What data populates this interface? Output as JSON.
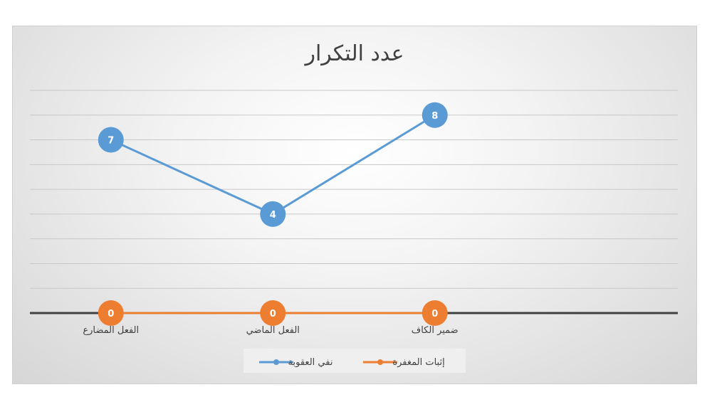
{
  "chart_data": {
    "type": "line",
    "title": "عدد التكرار",
    "categories": [
      "الفعل المضارع",
      "الفعل الماضي",
      "ضمير الكاف",
      ""
    ],
    "series": [
      {
        "name": "نفي العقوبة",
        "values": [
          7,
          4,
          8,
          null
        ],
        "color": "#5b9bd5"
      },
      {
        "name": "إثبات المغفرة",
        "values": [
          0,
          0,
          0,
          null
        ],
        "color": "#ed7d31"
      }
    ],
    "ylim": [
      0,
      9
    ],
    "grid": true,
    "data_labels": true,
    "legend_placement": "bottom",
    "axis_color": "#404040"
  }
}
